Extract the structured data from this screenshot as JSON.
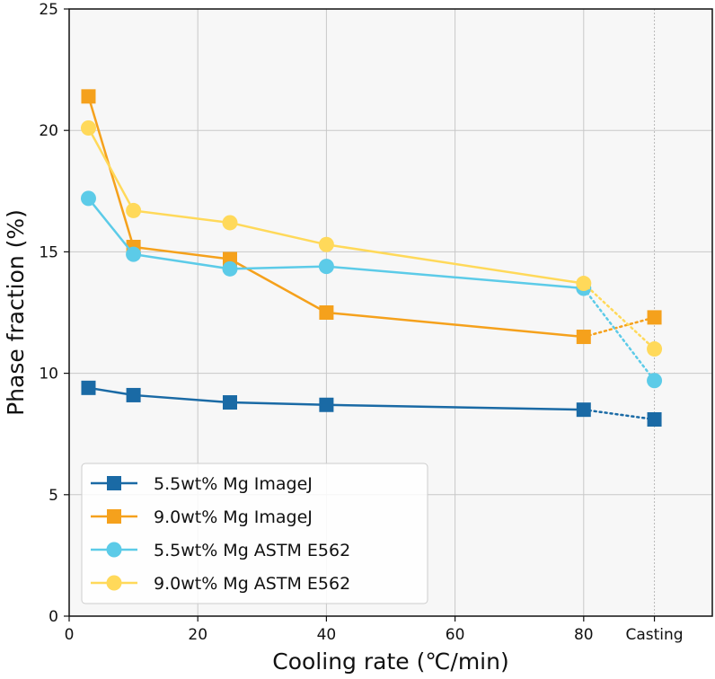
{
  "chart_data": {
    "type": "line",
    "xlabel": "Cooling rate (℃/min)",
    "ylabel": "Phase fraction (%)",
    "title": "",
    "xlim": [
      0,
      100
    ],
    "ylim": [
      0,
      25
    ],
    "x_ticks": [
      0,
      20,
      40,
      60,
      80
    ],
    "x_tick_labels": [
      "0",
      "20",
      "40",
      "60",
      "80"
    ],
    "extra_x_tick": {
      "x": 91,
      "label": "Casting"
    },
    "y_ticks": [
      0,
      5,
      10,
      15,
      20,
      25
    ],
    "y_tick_labels": [
      "0",
      "5",
      "10",
      "15",
      "20",
      "25"
    ],
    "grid": true,
    "legend_position": "bottom-left",
    "series": [
      {
        "name": "5.5wt% Mg ImageJ",
        "marker": "square",
        "color": "#1a6aa5",
        "x": [
          3,
          10,
          25,
          40,
          80
        ],
        "y": [
          9.4,
          9.1,
          8.8,
          8.7,
          8.5
        ],
        "casting": 8.1
      },
      {
        "name": "9.0wt% Mg ImageJ",
        "marker": "square",
        "color": "#f5a11c",
        "x": [
          3,
          10,
          25,
          40,
          80
        ],
        "y": [
          21.4,
          15.2,
          14.7,
          12.5,
          11.5
        ],
        "casting": 12.3
      },
      {
        "name": "5.5wt% Mg ASTM E562",
        "marker": "circle",
        "color": "#5ccbe8",
        "x": [
          3,
          10,
          25,
          40,
          80
        ],
        "y": [
          17.2,
          14.9,
          14.3,
          14.4,
          13.5
        ],
        "casting": 9.7
      },
      {
        "name": "9.0wt% Mg ASTM E562",
        "marker": "circle",
        "color": "#ffd95a",
        "x": [
          3,
          10,
          25,
          40,
          80
        ],
        "y": [
          20.1,
          16.7,
          16.2,
          15.3,
          13.7
        ],
        "casting": 11.0
      }
    ]
  }
}
